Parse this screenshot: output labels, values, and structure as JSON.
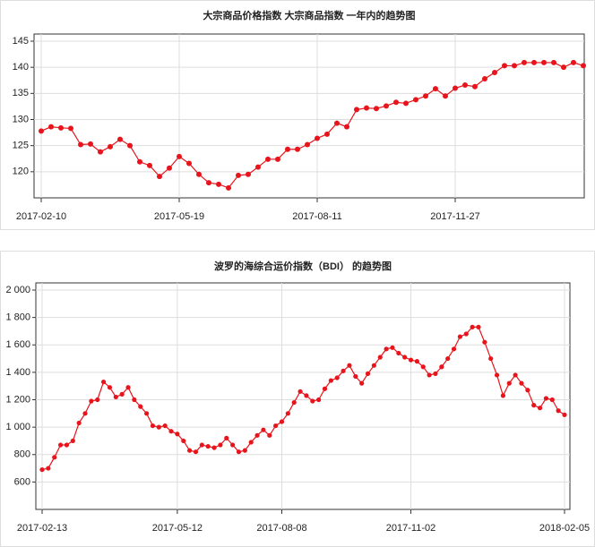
{
  "chart_data": [
    {
      "type": "line",
      "title": "大宗商品价格指数 大宗商品指数 一年内的趋势图",
      "color": "#e8141b",
      "categories": [
        "2017-02-10",
        null,
        null,
        null,
        null,
        null,
        null,
        null,
        null,
        null,
        null,
        null,
        null,
        null,
        "2017-05-19",
        null,
        null,
        null,
        null,
        null,
        null,
        null,
        null,
        null,
        null,
        null,
        null,
        null,
        "2017-08-11",
        null,
        null,
        null,
        null,
        null,
        null,
        null,
        null,
        null,
        null,
        null,
        null,
        null,
        "2017-11-27",
        null,
        null,
        null,
        null,
        null,
        null,
        null,
        null,
        null,
        null,
        null,
        null,
        null
      ],
      "values": [
        127.8,
        128.6,
        128.4,
        128.3,
        125.2,
        125.3,
        123.8,
        124.8,
        126.2,
        125.0,
        121.9,
        121.2,
        119.1,
        120.7,
        122.9,
        121.6,
        119.5,
        117.9,
        117.6,
        116.9,
        119.3,
        119.5,
        120.9,
        122.4,
        122.4,
        124.3,
        124.3,
        125.2,
        126.4,
        127.2,
        129.3,
        128.6,
        131.9,
        132.2,
        132.1,
        132.6,
        133.3,
        133.1,
        133.8,
        134.5,
        135.9,
        134.5,
        136.0,
        136.6,
        136.3,
        137.8,
        139.0,
        140.3,
        140.3,
        140.9,
        140.9,
        140.9,
        140.9,
        140.0,
        140.9,
        140.3
      ],
      "ylim": [
        115,
        145
      ],
      "yticks": [
        120,
        125,
        130,
        135,
        140,
        145
      ],
      "grid": true
    },
    {
      "type": "line",
      "title": "波罗的海综合运价指数（BDI） 的趋势图",
      "color": "#e8141b",
      "categories": [
        "2017-02-13",
        null,
        null,
        null,
        null,
        null,
        null,
        null,
        null,
        null,
        null,
        null,
        null,
        null,
        null,
        null,
        null,
        null,
        null,
        null,
        null,
        null,
        "2017-05-12",
        null,
        null,
        null,
        null,
        null,
        null,
        null,
        null,
        null,
        null,
        null,
        null,
        null,
        null,
        null,
        null,
        "2017-08-08",
        null,
        null,
        null,
        null,
        null,
        null,
        null,
        null,
        null,
        null,
        null,
        null,
        null,
        null,
        null,
        null,
        null,
        null,
        null,
        null,
        "2017-11-02",
        null,
        null,
        null,
        null,
        null,
        null,
        null,
        null,
        null,
        null,
        null,
        null,
        null,
        null,
        null,
        null,
        null,
        null,
        null,
        null,
        null,
        null,
        null,
        null,
        "2018-02-05"
      ],
      "values": [
        690,
        700,
        780,
        870,
        870,
        900,
        1030,
        1100,
        1190,
        1200,
        1330,
        1290,
        1220,
        1240,
        1290,
        1200,
        1150,
        1100,
        1010,
        1000,
        1010,
        970,
        950,
        900,
        830,
        820,
        870,
        860,
        850,
        870,
        920,
        870,
        820,
        830,
        890,
        940,
        980,
        940,
        1010,
        1040,
        1100,
        1180,
        1260,
        1230,
        1190,
        1200,
        1280,
        1340,
        1360,
        1410,
        1450,
        1370,
        1320,
        1390,
        1450,
        1510,
        1570,
        1580,
        1540,
        1510,
        1490,
        1480,
        1440,
        1380,
        1390,
        1440,
        1500,
        1570,
        1660,
        1680,
        1730,
        1730,
        1620,
        1500,
        1380,
        1230,
        1320,
        1380,
        1320,
        1270,
        1160,
        1140,
        1210,
        1200,
        1120,
        1090
      ],
      "ylim": [
        400,
        2000
      ],
      "yticks": [
        600,
        800,
        {
          "value": 1000,
          "label": "1 000"
        },
        {
          "value": 1200,
          "label": "1 200"
        },
        {
          "value": 1400,
          "label": "1 400"
        },
        {
          "value": 1600,
          "label": "1 600"
        },
        {
          "value": 1800,
          "label": "1 800"
        },
        {
          "value": 2000,
          "label": "2 000"
        }
      ],
      "grid": true
    }
  ]
}
